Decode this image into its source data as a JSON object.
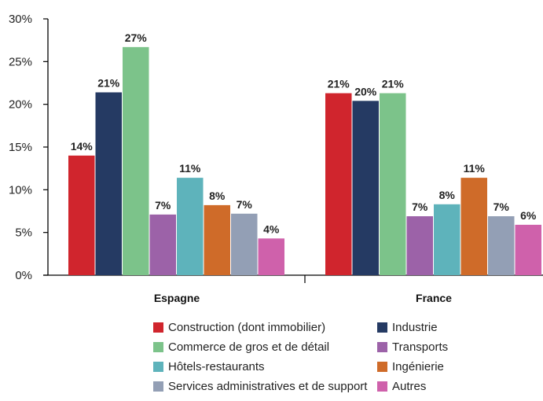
{
  "chart_data": {
    "type": "bar",
    "title": "",
    "xlabel": "",
    "ylabel": "",
    "categories": [
      "Espagne",
      "France"
    ],
    "ylim": [
      0,
      30
    ],
    "y_ticks": [
      "0%",
      "5%",
      "10%",
      "15%",
      "20%",
      "25%",
      "30%"
    ],
    "y_tick_values": [
      0,
      5,
      10,
      15,
      20,
      25,
      30
    ],
    "grid": false,
    "legend_position": "bottom",
    "series": [
      {
        "name": "Construction (dont immobilier)",
        "color": "#d0252d",
        "values": [
          14,
          21.3
        ],
        "labels": [
          "14%",
          "21%"
        ]
      },
      {
        "name": "Industrie",
        "color": "#253a63",
        "values": [
          21.4,
          20.4
        ],
        "labels": [
          "21%",
          "20%"
        ]
      },
      {
        "name": "Commerce de gros et de détail",
        "color": "#7cc38a",
        "values": [
          26.7,
          21.3
        ],
        "labels": [
          "27%",
          "21%"
        ]
      },
      {
        "name": "Transports",
        "color": "#9c62a8",
        "values": [
          7.1,
          6.9
        ],
        "labels": [
          "7%",
          "7%"
        ]
      },
      {
        "name": "Hôtels-restaurants",
        "color": "#5eb3bb",
        "values": [
          11.4,
          8.3
        ],
        "labels": [
          "11%",
          "8%"
        ]
      },
      {
        "name": "Ingénierie",
        "color": "#cf6b29",
        "values": [
          8.2,
          11.4
        ],
        "labels": [
          "8%",
          "11%"
        ]
      },
      {
        "name": "Services administratives et de support",
        "color": "#939fb5",
        "values": [
          7.2,
          6.9
        ],
        "labels": [
          "7%",
          "7%"
        ]
      },
      {
        "name": "Autres",
        "color": "#cf61ab",
        "values": [
          4.3,
          5.9
        ],
        "labels": [
          "4%",
          "6%"
        ]
      }
    ]
  }
}
